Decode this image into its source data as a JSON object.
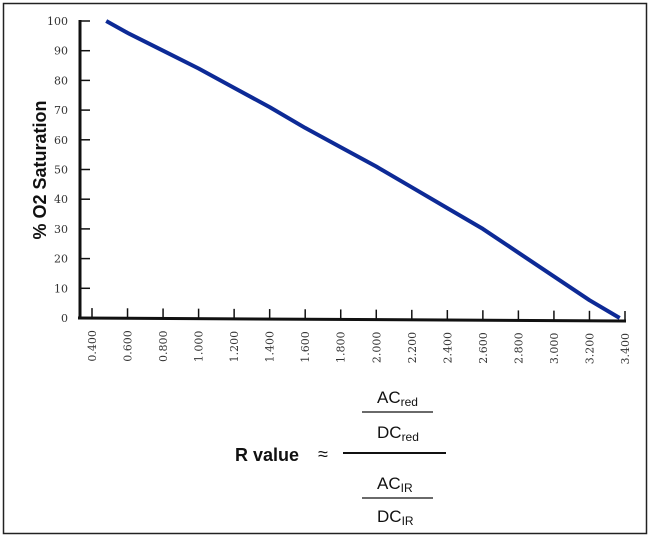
{
  "chart_data": {
    "type": "line",
    "title": "",
    "ylabel": "% O2 Saturation",
    "xlabel": "R value",
    "xlim": [
      0.4,
      3.4
    ],
    "ylim": [
      0,
      100
    ],
    "grid": false,
    "x_ticks": [
      "0.400",
      "0.600",
      "0.800",
      "1.000",
      "1.200",
      "1.400",
      "1.600",
      "1.800",
      "2.000",
      "2.200",
      "2.400",
      "2.600",
      "2.800",
      "3.000",
      "3.200",
      "3.400"
    ],
    "y_ticks": [
      "0",
      "10",
      "20",
      "30",
      "40",
      "50",
      "60",
      "70",
      "80",
      "90",
      "100"
    ],
    "series": [
      {
        "color": "#0d2a96",
        "x": [
          0.48,
          0.6,
          0.8,
          1.0,
          1.2,
          1.4,
          1.6,
          1.8,
          2.0,
          2.2,
          2.4,
          2.6,
          2.8,
          3.0,
          3.2,
          3.37
        ],
        "y": [
          100,
          96,
          90,
          84,
          77.5,
          71,
          64,
          57.5,
          51,
          44,
          37,
          30,
          22,
          14,
          6,
          0
        ]
      }
    ],
    "formula": {
      "lhs": "R value",
      "approx": "≈",
      "num_top": "AC",
      "num_top_sub": "red",
      "num_bottom": "DC",
      "num_bottom_sub": "red",
      "den_top": "AC",
      "den_top_sub": "IR",
      "den_bottom": "DC",
      "den_bottom_sub": "IR"
    }
  }
}
